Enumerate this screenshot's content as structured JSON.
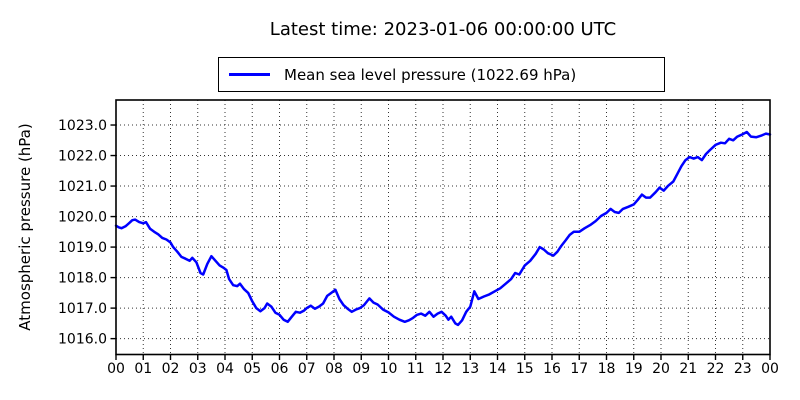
{
  "figure": {
    "background": "#ffffff",
    "text_color": "#000000"
  },
  "chart_data": {
    "type": "line",
    "title": "Latest time: 2023-01-06 00:00:00 UTC",
    "xlabel": "",
    "ylabel": "Atmospheric pressure (hPa)",
    "grid": "dotted",
    "legend_position": "top-center-above-axes",
    "legend": [
      {
        "label": "Mean sea level pressure (1022.69 hPa)",
        "color": "#0000ff"
      }
    ],
    "xlim": [
      0,
      24
    ],
    "ylim": [
      1015.48,
      1023.82
    ],
    "x_ticks": [
      0,
      1,
      2,
      3,
      4,
      5,
      6,
      7,
      8,
      9,
      10,
      11,
      12,
      13,
      14,
      15,
      16,
      17,
      18,
      19,
      20,
      21,
      22,
      23,
      24
    ],
    "x_tick_labels": [
      "00",
      "01",
      "02",
      "03",
      "04",
      "05",
      "06",
      "07",
      "08",
      "09",
      "10",
      "11",
      "12",
      "13",
      "14",
      "15",
      "16",
      "17",
      "18",
      "19",
      "20",
      "21",
      "22",
      "23",
      "00"
    ],
    "y_ticks": [
      1016,
      1017,
      1018,
      1019,
      1020,
      1021,
      1022,
      1023
    ],
    "y_tick_labels": [
      "1016.0",
      "1017.0",
      "1018.0",
      "1019.0",
      "1020.0",
      "1021.0",
      "1022.0",
      "1023.0"
    ],
    "series": [
      {
        "name": "Mean sea level pressure",
        "color": "#0000ff",
        "line_width": 2.5,
        "latest_value_hpa": 1022.69,
        "points": [
          [
            0.0,
            1019.7
          ],
          [
            0.1,
            1019.65
          ],
          [
            0.2,
            1019.62
          ],
          [
            0.35,
            1019.68
          ],
          [
            0.5,
            1019.8
          ],
          [
            0.6,
            1019.88
          ],
          [
            0.7,
            1019.9
          ],
          [
            0.85,
            1019.82
          ],
          [
            1.0,
            1019.78
          ],
          [
            1.1,
            1019.82
          ],
          [
            1.25,
            1019.6
          ],
          [
            1.4,
            1019.5
          ],
          [
            1.55,
            1019.42
          ],
          [
            1.7,
            1019.3
          ],
          [
            1.85,
            1019.25
          ],
          [
            2.0,
            1019.15
          ],
          [
            2.1,
            1019.0
          ],
          [
            2.25,
            1018.85
          ],
          [
            2.4,
            1018.68
          ],
          [
            2.55,
            1018.62
          ],
          [
            2.7,
            1018.55
          ],
          [
            2.8,
            1018.65
          ],
          [
            2.95,
            1018.5
          ],
          [
            3.1,
            1018.15
          ],
          [
            3.2,
            1018.1
          ],
          [
            3.35,
            1018.45
          ],
          [
            3.5,
            1018.7
          ],
          [
            3.65,
            1018.55
          ],
          [
            3.8,
            1018.4
          ],
          [
            3.95,
            1018.32
          ],
          [
            4.05,
            1018.25
          ],
          [
            4.15,
            1017.95
          ],
          [
            4.3,
            1017.75
          ],
          [
            4.45,
            1017.72
          ],
          [
            4.55,
            1017.8
          ],
          [
            4.7,
            1017.62
          ],
          [
            4.85,
            1017.5
          ],
          [
            5.0,
            1017.22
          ],
          [
            5.15,
            1017.0
          ],
          [
            5.3,
            1016.9
          ],
          [
            5.45,
            1017.0
          ],
          [
            5.55,
            1017.15
          ],
          [
            5.7,
            1017.05
          ],
          [
            5.85,
            1016.85
          ],
          [
            6.0,
            1016.78
          ],
          [
            6.15,
            1016.62
          ],
          [
            6.3,
            1016.55
          ],
          [
            6.45,
            1016.72
          ],
          [
            6.6,
            1016.88
          ],
          [
            6.75,
            1016.85
          ],
          [
            6.9,
            1016.92
          ],
          [
            7.0,
            1017.0
          ],
          [
            7.15,
            1017.08
          ],
          [
            7.3,
            1016.98
          ],
          [
            7.45,
            1017.05
          ],
          [
            7.6,
            1017.15
          ],
          [
            7.75,
            1017.4
          ],
          [
            7.9,
            1017.5
          ],
          [
            8.05,
            1017.6
          ],
          [
            8.2,
            1017.3
          ],
          [
            8.35,
            1017.1
          ],
          [
            8.5,
            1016.98
          ],
          [
            8.65,
            1016.88
          ],
          [
            8.8,
            1016.95
          ],
          [
            8.95,
            1017.0
          ],
          [
            9.1,
            1017.1
          ],
          [
            9.3,
            1017.32
          ],
          [
            9.45,
            1017.18
          ],
          [
            9.6,
            1017.12
          ],
          [
            9.8,
            1016.95
          ],
          [
            10.0,
            1016.86
          ],
          [
            10.2,
            1016.72
          ],
          [
            10.4,
            1016.62
          ],
          [
            10.6,
            1016.55
          ],
          [
            10.75,
            1016.6
          ],
          [
            10.9,
            1016.68
          ],
          [
            11.05,
            1016.78
          ],
          [
            11.2,
            1016.82
          ],
          [
            11.35,
            1016.75
          ],
          [
            11.5,
            1016.88
          ],
          [
            11.65,
            1016.72
          ],
          [
            11.8,
            1016.82
          ],
          [
            11.95,
            1016.88
          ],
          [
            12.1,
            1016.75
          ],
          [
            12.2,
            1016.62
          ],
          [
            12.3,
            1016.72
          ],
          [
            12.45,
            1016.5
          ],
          [
            12.55,
            1016.45
          ],
          [
            12.7,
            1016.6
          ],
          [
            12.85,
            1016.88
          ],
          [
            13.0,
            1017.05
          ],
          [
            13.15,
            1017.55
          ],
          [
            13.3,
            1017.3
          ],
          [
            13.5,
            1017.38
          ],
          [
            13.7,
            1017.45
          ],
          [
            13.9,
            1017.55
          ],
          [
            14.1,
            1017.65
          ],
          [
            14.3,
            1017.8
          ],
          [
            14.5,
            1017.95
          ],
          [
            14.65,
            1018.15
          ],
          [
            14.8,
            1018.1
          ],
          [
            15.0,
            1018.4
          ],
          [
            15.2,
            1018.55
          ],
          [
            15.4,
            1018.78
          ],
          [
            15.55,
            1019.0
          ],
          [
            15.7,
            1018.92
          ],
          [
            15.85,
            1018.8
          ],
          [
            16.05,
            1018.72
          ],
          [
            16.2,
            1018.85
          ],
          [
            16.35,
            1019.05
          ],
          [
            16.5,
            1019.22
          ],
          [
            16.65,
            1019.4
          ],
          [
            16.8,
            1019.5
          ],
          [
            17.0,
            1019.5
          ],
          [
            17.2,
            1019.62
          ],
          [
            17.4,
            1019.72
          ],
          [
            17.6,
            1019.85
          ],
          [
            17.8,
            1020.02
          ],
          [
            18.0,
            1020.12
          ],
          [
            18.15,
            1020.25
          ],
          [
            18.3,
            1020.15
          ],
          [
            18.45,
            1020.12
          ],
          [
            18.6,
            1020.25
          ],
          [
            18.8,
            1020.32
          ],
          [
            19.0,
            1020.4
          ],
          [
            19.15,
            1020.55
          ],
          [
            19.3,
            1020.72
          ],
          [
            19.45,
            1020.62
          ],
          [
            19.6,
            1020.62
          ],
          [
            19.8,
            1020.8
          ],
          [
            19.95,
            1020.95
          ],
          [
            20.1,
            1020.85
          ],
          [
            20.25,
            1021.0
          ],
          [
            20.45,
            1021.15
          ],
          [
            20.6,
            1021.4
          ],
          [
            20.75,
            1021.65
          ],
          [
            20.9,
            1021.85
          ],
          [
            21.05,
            1021.95
          ],
          [
            21.2,
            1021.9
          ],
          [
            21.35,
            1021.95
          ],
          [
            21.5,
            1021.85
          ],
          [
            21.65,
            1022.05
          ],
          [
            21.8,
            1022.18
          ],
          [
            22.0,
            1022.35
          ],
          [
            22.2,
            1022.42
          ],
          [
            22.35,
            1022.4
          ],
          [
            22.5,
            1022.55
          ],
          [
            22.65,
            1022.5
          ],
          [
            22.8,
            1022.62
          ],
          [
            23.0,
            1022.7
          ],
          [
            23.15,
            1022.77
          ],
          [
            23.3,
            1022.62
          ],
          [
            23.5,
            1022.6
          ],
          [
            23.7,
            1022.66
          ],
          [
            23.85,
            1022.72
          ],
          [
            24.0,
            1022.69
          ]
        ]
      }
    ]
  }
}
